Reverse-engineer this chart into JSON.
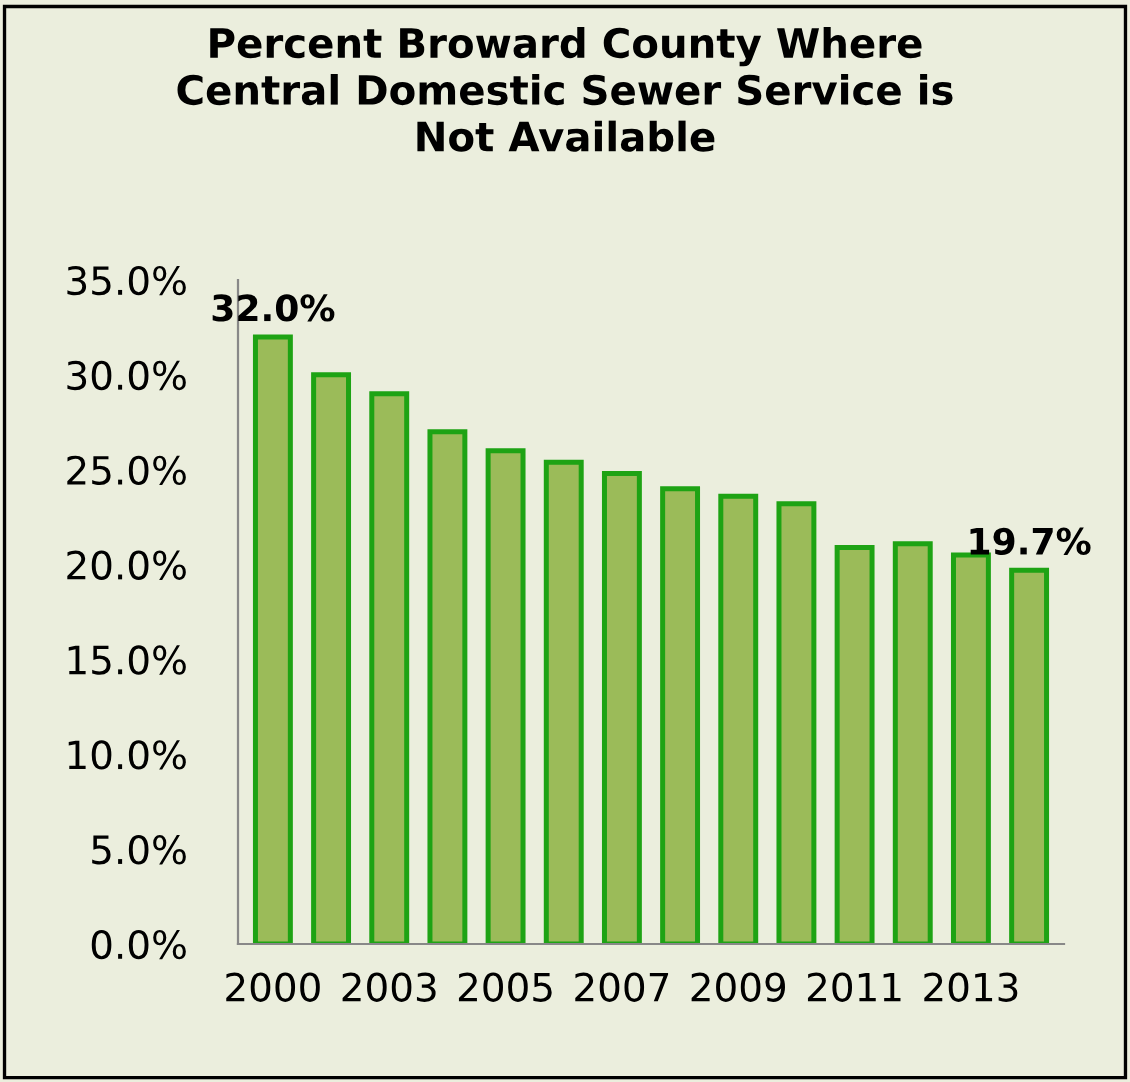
{
  "chart_data": {
    "type": "bar",
    "title": "Percent Broward County Where\nCentral Domestic Sewer Service is\nNot Available",
    "categories": [
      "2000",
      null,
      "2003",
      null,
      "2005",
      null,
      "2007",
      null,
      "2009",
      null,
      "2011",
      null,
      "2013",
      null
    ],
    "values": [
      32.0,
      30.0,
      29.0,
      27.0,
      26.0,
      25.4,
      24.8,
      24.0,
      23.6,
      23.2,
      20.9,
      21.1,
      20.5,
      19.7
    ],
    "value_labels": [
      "32.0%",
      null,
      null,
      null,
      null,
      null,
      null,
      null,
      null,
      null,
      null,
      null,
      null,
      "19.7%"
    ],
    "color": "#9bbb59",
    "ylim": [
      0,
      35
    ],
    "yticks": [
      {
        "value": 0,
        "label": "0.0%"
      },
      {
        "value": 5,
        "label": "5.0%"
      },
      {
        "value": 10,
        "label": "10.0%"
      },
      {
        "value": 15,
        "label": "15.0%"
      },
      {
        "value": 20,
        "label": "20.0%"
      },
      {
        "value": 25,
        "label": "25.0%"
      },
      {
        "value": 30,
        "label": "30.0%"
      },
      {
        "value": 35,
        "label": "35.0%"
      }
    ],
    "grid": false,
    "legend": false
  }
}
